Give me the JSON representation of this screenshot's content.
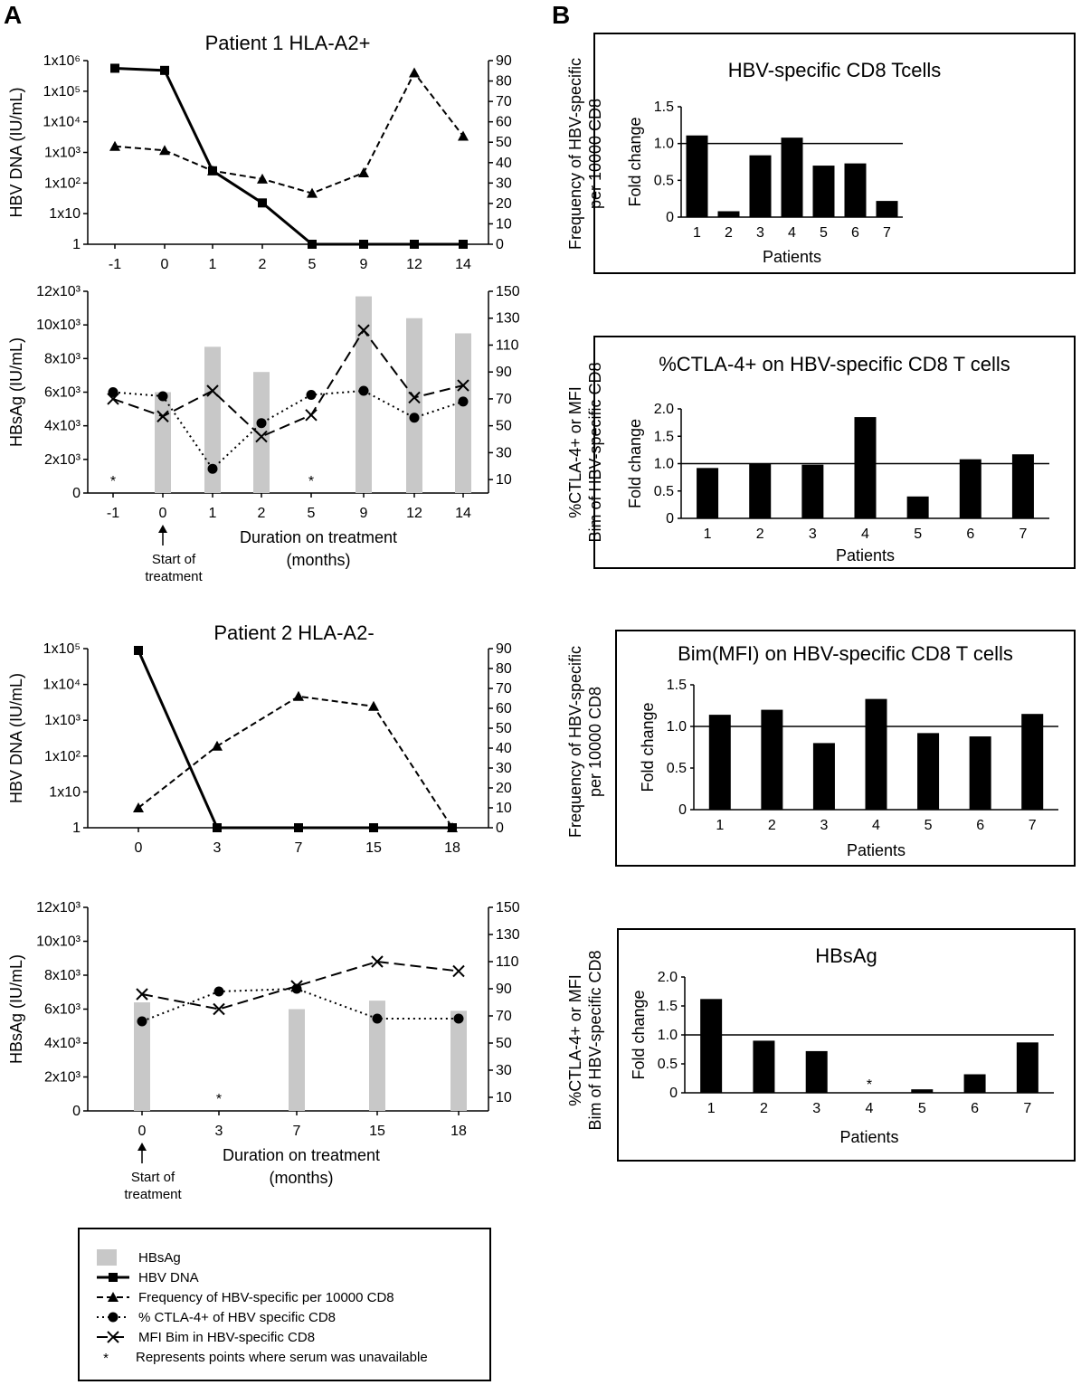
{
  "panel_labels": [
    "A",
    "B"
  ],
  "panelA_charts": [
    {
      "title": "Patient 1 HLA-A2+",
      "type": "line",
      "x": [
        "-1",
        "0",
        "1",
        "2",
        "5",
        "9",
        "12",
        "14"
      ],
      "left_axis": {
        "label": "HBV DNA (IU/mL)",
        "scale": "log",
        "ticks": [
          "1",
          "1x10",
          "1x10²",
          "1x10³",
          "1x10⁴",
          "1x10⁵",
          "1x10⁶"
        ]
      },
      "right_axis": {
        "ticks": [
          "0",
          "10",
          "20",
          "30",
          "40",
          "50",
          "60",
          "70",
          "80",
          "90"
        ],
        "ylim": [
          0,
          90
        ]
      },
      "series": [
        {
          "name": "HBV DNA",
          "axis": "left",
          "marker": "square",
          "style": "solid",
          "values_log10": [
            5.75,
            5.68,
            2.4,
            1.35,
            0,
            0,
            0,
            0
          ]
        },
        {
          "name": "Frequency of HBV-specific per 10000 CD8",
          "axis": "right",
          "marker": "triangle",
          "style": "dashed",
          "values": [
            48,
            46,
            36,
            32,
            25,
            35,
            84,
            53
          ]
        }
      ]
    },
    {
      "type": "bar+line",
      "x": [
        "-1",
        "0",
        "1",
        "2",
        "5",
        "9",
        "12",
        "14"
      ],
      "left_axis": {
        "label": "HBsAg (IU/mL)",
        "ticks": [
          "0",
          "2x10³",
          "4x10³",
          "6x10³",
          "8x10³",
          "10x10³",
          "12x10³"
        ],
        "ylim": [
          0,
          12000
        ]
      },
      "right_axis": {
        "ticks": [
          "10",
          "30",
          "50",
          "70",
          "90",
          "110",
          "130",
          "150"
        ],
        "ylim": [
          0,
          150
        ]
      },
      "bars": {
        "name": "HBsAg",
        "values": [
          null,
          6000,
          8700,
          7200,
          null,
          11700,
          10400,
          9500
        ]
      },
      "unavailable": [
        "-1",
        "5"
      ],
      "series": [
        {
          "name": "% CTLA-4+ of HBV specific CD8",
          "axis": "right",
          "marker": "circle",
          "style": "dotted",
          "values": [
            75,
            72,
            18,
            52,
            73,
            76,
            56,
            68
          ]
        },
        {
          "name": "MFI Bim in HBV-specific CD8",
          "axis": "right",
          "marker": "x",
          "style": "longdash",
          "values": [
            70,
            57,
            76,
            42,
            58,
            121,
            71,
            80
          ]
        }
      ],
      "xlabel": "Duration on treatment (months)",
      "start_note": "Start of treatment"
    },
    {
      "title": "Patient 2 HLA-A2-",
      "type": "line",
      "x": [
        "0",
        "3",
        "7",
        "15",
        "18"
      ],
      "left_axis": {
        "label": "HBV DNA (IU/mL)",
        "scale": "log",
        "ticks": [
          "1",
          "1x10",
          "1x10²",
          "1x10³",
          "1x10⁴",
          "1x10⁵"
        ]
      },
      "right_axis": {
        "ticks": [
          "0",
          "10",
          "20",
          "30",
          "40",
          "50",
          "60",
          "70",
          "80",
          "90"
        ],
        "ylim": [
          0,
          90
        ]
      },
      "series": [
        {
          "name": "HBV DNA",
          "axis": "left",
          "marker": "square",
          "style": "solid",
          "values_log10": [
            4.95,
            0,
            0,
            0,
            0
          ]
        },
        {
          "name": "Frequency of HBV-specific per 10000 CD8",
          "axis": "right",
          "marker": "triangle",
          "style": "dashed",
          "values": [
            10,
            41,
            66,
            61,
            0
          ]
        }
      ]
    },
    {
      "type": "bar+line",
      "x": [
        "0",
        "3",
        "7",
        "15",
        "18"
      ],
      "left_axis": {
        "label": "HBsAg (IU/mL)",
        "ticks": [
          "0",
          "2x10³",
          "4x10³",
          "6x10³",
          "8x10³",
          "10x10³",
          "12x10³"
        ],
        "ylim": [
          0,
          12000
        ]
      },
      "right_axis": {
        "ticks": [
          "10",
          "30",
          "50",
          "70",
          "90",
          "110",
          "130",
          "150"
        ],
        "ylim": [
          0,
          150
        ]
      },
      "bars": {
        "name": "HBsAg",
        "values": [
          6400,
          null,
          6000,
          6500,
          5900
        ]
      },
      "unavailable": [
        "3"
      ],
      "series": [
        {
          "name": "% CTLA-4+ of HBV specific CD8",
          "axis": "right",
          "marker": "circle",
          "style": "dotted",
          "values": [
            66,
            88,
            90,
            68,
            68
          ]
        },
        {
          "name": "MFI Bim in HBV-specific CD8",
          "axis": "right",
          "marker": "x",
          "style": "longdash",
          "values": [
            86,
            75,
            92,
            110,
            103
          ]
        }
      ],
      "xlabel": "Duration on treatment (months)",
      "start_note": "Start of treatment"
    }
  ],
  "chart_data": [
    {
      "type": "bar",
      "title": "HBV-specific CD8 Tcells",
      "xlabel": "Patients",
      "ylabel": "Fold change",
      "side_label": "Frequency of HBV-specific per 10000 CD8",
      "categories": [
        "1",
        "2",
        "3",
        "4",
        "5",
        "6",
        "7"
      ],
      "values": [
        1.11,
        0.08,
        0.84,
        1.08,
        0.7,
        0.73,
        0.22
      ],
      "ylim": [
        0,
        1.5
      ],
      "yticks": [
        "0",
        "0.5",
        "1.0",
        "1.5"
      ],
      "reference_line": 1.0
    },
    {
      "type": "bar",
      "title": "%CTLA-4+ on HBV-specific CD8 T cells",
      "xlabel": "Patients",
      "ylabel": "Fold change",
      "side_label": "%CTLA-4+ or MFI Bim of HBV-specific CD8",
      "categories": [
        "1",
        "2",
        "3",
        "4",
        "5",
        "6",
        "7"
      ],
      "values": [
        0.92,
        1.0,
        0.98,
        1.85,
        0.4,
        1.08,
        1.17
      ],
      "ylim": [
        0,
        2.0
      ],
      "yticks": [
        "0",
        "0.5",
        "1.0",
        "1.5",
        "2.0"
      ],
      "reference_line": 1.0
    },
    {
      "type": "bar",
      "title": "Bim(MFI) on HBV-specific CD8 T cells",
      "xlabel": "Patients",
      "ylabel": "Fold change",
      "side_label": "Frequency of HBV-specific per 10000 CD8",
      "categories": [
        "1",
        "2",
        "3",
        "4",
        "5",
        "6",
        "7"
      ],
      "values": [
        1.14,
        1.2,
        0.8,
        1.33,
        0.92,
        0.88,
        1.15
      ],
      "ylim": [
        0,
        1.5
      ],
      "yticks": [
        "0",
        "0.5",
        "1.0",
        "1.5"
      ],
      "reference_line": 1.0
    },
    {
      "type": "bar",
      "title": "HBsAg",
      "xlabel": "Patients",
      "ylabel": "Fold change",
      "side_label": "%CTLA-4+ or MFI Bim of HBV-specific CD8",
      "categories": [
        "1",
        "2",
        "3",
        "4",
        "5",
        "6",
        "7"
      ],
      "values": [
        1.62,
        0.9,
        0.72,
        null,
        0.06,
        0.32,
        0.87
      ],
      "unavailable": [
        "4"
      ],
      "ylim": [
        0,
        2.0
      ],
      "yticks": [
        "0",
        "0.5",
        "1.0",
        "1.5",
        "2.0"
      ],
      "reference_line": 1.0
    }
  ],
  "legend": {
    "items": [
      {
        "label": "HBsAg",
        "kind": "bar"
      },
      {
        "label": "HBV DNA",
        "kind": "solid-square"
      },
      {
        "label": "Frequency of HBV-specific per 10000 CD8",
        "kind": "dashed-triangle"
      },
      {
        "label": "% CTLA-4+ of HBV specific CD8",
        "kind": "dotted-circle"
      },
      {
        "label": "MFI Bim in HBV-specific CD8",
        "kind": "longdash-x"
      },
      {
        "label": "Represents points where serum was unavailable",
        "kind": "asterisk",
        "symbol": "*"
      }
    ]
  },
  "colors": {
    "bar_gray": "#c8c8c8",
    "bar_black": "#000000",
    "line": "#000000"
  }
}
